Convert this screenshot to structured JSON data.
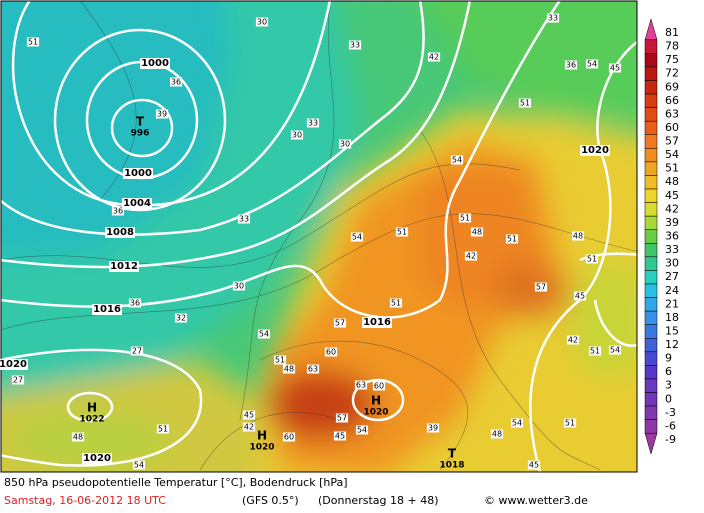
{
  "map": {
    "isobar_labels": [
      1000,
      1000,
      1004,
      1008,
      1012,
      1016,
      1020,
      1020,
      1016,
      1020
    ],
    "contour_labels": [
      51,
      30,
      33,
      36,
      39,
      33,
      30,
      30,
      36,
      33,
      30,
      32,
      36,
      27,
      27,
      48,
      54,
      51,
      54,
      51,
      57,
      60,
      51,
      54,
      54,
      51,
      48,
      51,
      42,
      51,
      54,
      45,
      36,
      33,
      42,
      48,
      51,
      45,
      57,
      42,
      51,
      54,
      63,
      63,
      60,
      48,
      45,
      42,
      60,
      57,
      45,
      54,
      39,
      54,
      51,
      48,
      45,
      51
    ],
    "centers": [
      {
        "symbol": "T",
        "pressure": 996
      },
      {
        "symbol": "H",
        "pressure": 1022
      },
      {
        "symbol": "H",
        "pressure": 1020
      },
      {
        "symbol": "H",
        "pressure": 1020
      },
      {
        "symbol": "T",
        "pressure": 1018
      }
    ]
  },
  "legend": {
    "ticks": [
      81,
      78,
      75,
      72,
      69,
      66,
      63,
      60,
      57,
      54,
      51,
      48,
      45,
      42,
      39,
      36,
      33,
      30,
      27,
      24,
      21,
      18,
      15,
      12,
      9,
      6,
      3,
      0,
      -3,
      -6,
      -9
    ],
    "colors": [
      "#e0409a",
      "#c81838",
      "#a80818",
      "#b81810",
      "#c82810",
      "#d83c10",
      "#e04c14",
      "#e86018",
      "#f07820",
      "#f08c20",
      "#f0a424",
      "#f0bc28",
      "#f0d42c",
      "#d8dc30",
      "#a8d838",
      "#68cc48",
      "#40c468",
      "#30c890",
      "#28d0c0",
      "#28c0e0",
      "#30a8e8",
      "#3890e8",
      "#3878e0",
      "#4060d8",
      "#4848d0",
      "#5838c8",
      "#6838c0",
      "#7038b8",
      "#8038b0",
      "#8c38a8",
      "#9838a0"
    ]
  },
  "footer": {
    "description": "850 hPa pseudopotentielle Temperatur [°C], Bodendruck [hPa]",
    "date": "Samstag, 16-06-2012  18 UTC",
    "model": "(GFS 0.5°)",
    "forecast": "(Donnerstag 18 + 48)",
    "source": "© www.wetter3.de"
  }
}
